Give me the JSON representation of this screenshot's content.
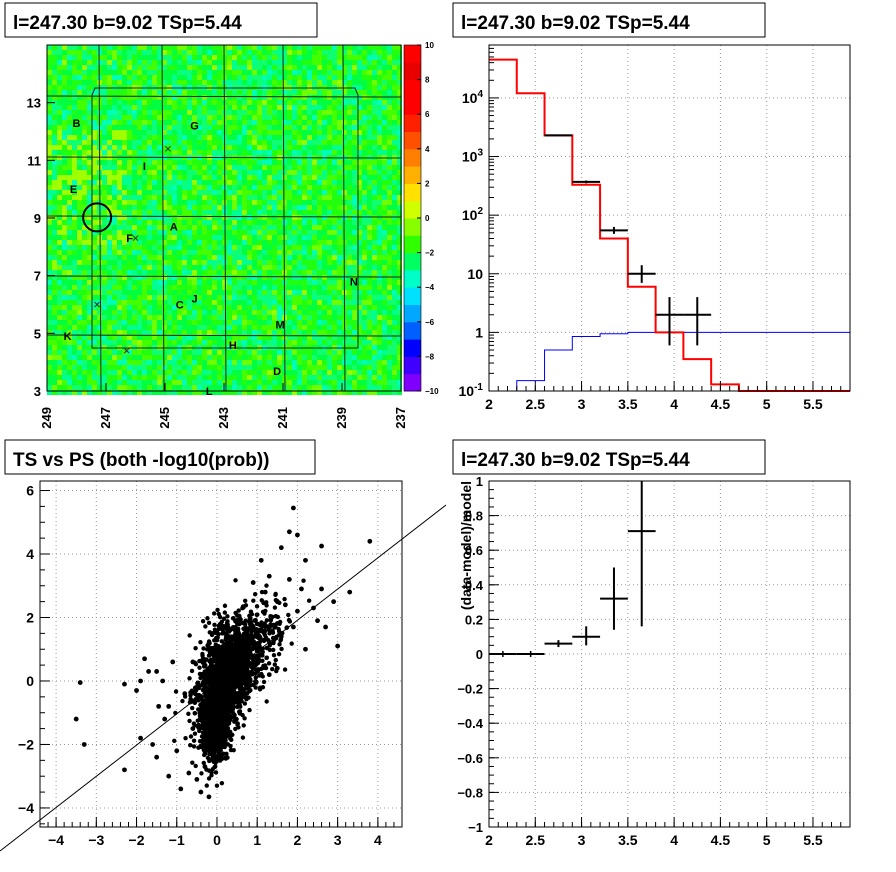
{
  "chart_data": [
    {
      "type": "heatmap",
      "title": "l=247.30 b=9.02 TSp=5.44",
      "x_ticks": [
        "249",
        "247",
        "245",
        "243",
        "241",
        "239",
        "237"
      ],
      "y_ticks": [
        "3",
        "5",
        "7",
        "9",
        "11",
        "13"
      ],
      "xlim": [
        249,
        237
      ],
      "ylim": [
        3,
        15
      ],
      "colorbar": {
        "ticks": [
          "10",
          "8",
          "6",
          "4",
          "2",
          "0",
          "−2",
          "−4",
          "−6",
          "−8",
          "−10"
        ],
        "range": [
          -10,
          10
        ],
        "colors": [
          "#7f00ff",
          "#3f00ff",
          "#0000ff",
          "#0060ff",
          "#00a8ff",
          "#00e0ff",
          "#00ffc8",
          "#00ff60",
          "#30ff00",
          "#88ff00",
          "#d0ff00",
          "#ffe000",
          "#ffb000",
          "#ff8000",
          "#ff5000",
          "#ff2000",
          "#ff0000",
          "#ff0000",
          "#e80000",
          "#ff0000"
        ]
      },
      "sources": [
        {
          "label": "A",
          "l": 244.7,
          "b": 8.7
        },
        {
          "label": "B",
          "l": 248.0,
          "b": 12.3
        },
        {
          "label": "C",
          "l": 244.5,
          "b": 6.0
        },
        {
          "label": "D",
          "l": 241.2,
          "b": 3.7
        },
        {
          "label": "E",
          "l": 248.1,
          "b": 10.0
        },
        {
          "label": "F",
          "l": 246.2,
          "b": 8.3
        },
        {
          "label": "G",
          "l": 244.0,
          "b": 12.2
        },
        {
          "label": "H",
          "l": 242.7,
          "b": 4.6
        },
        {
          "label": "I",
          "l": 245.7,
          "b": 10.8
        },
        {
          "label": "J",
          "l": 244.0,
          "b": 6.2
        },
        {
          "label": "K",
          "l": 248.3,
          "b": 4.9
        },
        {
          "label": "L",
          "l": 243.5,
          "b": 3.0
        },
        {
          "label": "M",
          "l": 241.1,
          "b": 5.3
        },
        {
          "label": "N",
          "l": 238.6,
          "b": 6.8
        }
      ],
      "candidate": {
        "l": 247.3,
        "b": 9.02
      }
    },
    {
      "type": "line",
      "title": "l=247.30 b=9.02 TSp=5.44",
      "x_ticks": [
        "2",
        "2.5",
        "3",
        "3.5",
        "4",
        "4.5",
        "5",
        "5.5"
      ],
      "y_ticks": [
        "10^{-1}",
        "1",
        "10",
        "10^{2}",
        "10^{3}",
        "10^{4}"
      ],
      "y_scale": "log",
      "xlim": [
        2.0,
        5.9
      ],
      "ylim": [
        0.1,
        80000
      ],
      "grid": true,
      "model_total": [
        {
          "x0": 2.0,
          "x1": 2.3,
          "y": 45000
        },
        {
          "x0": 2.3,
          "x1": 2.6,
          "y": 12000
        },
        {
          "x0": 2.6,
          "x1": 2.9,
          "y": 2300
        },
        {
          "x0": 2.9,
          "x1": 3.2,
          "y": 330
        },
        {
          "x0": 3.2,
          "x1": 3.5,
          "y": 40
        },
        {
          "x0": 3.5,
          "x1": 3.8,
          "y": 6
        },
        {
          "x0": 3.8,
          "x1": 4.1,
          "y": 1.0
        },
        {
          "x0": 4.1,
          "x1": 4.4,
          "y": 0.35
        },
        {
          "x0": 4.4,
          "x1": 4.7,
          "y": 0.13
        },
        {
          "x0": 4.7,
          "x1": 5.9,
          "y": 0.1
        }
      ],
      "model_source": [
        {
          "x0": 2.3,
          "x1": 2.6,
          "y": 0.15
        },
        {
          "x0": 2.6,
          "x1": 2.9,
          "y": 0.5
        },
        {
          "x0": 2.9,
          "x1": 3.2,
          "y": 0.85
        },
        {
          "x0": 3.2,
          "x1": 3.5,
          "y": 0.95
        },
        {
          "x0": 3.5,
          "x1": 5.9,
          "y": 1.0
        }
      ],
      "data": [
        {
          "x": 2.75,
          "xerr": 0.15,
          "y": 2300,
          "ylo": 2300,
          "yhi": 2300
        },
        {
          "x": 3.05,
          "xerr": 0.15,
          "y": 370,
          "ylo": 350,
          "yhi": 390
        },
        {
          "x": 3.35,
          "xerr": 0.15,
          "y": 55,
          "ylo": 48,
          "yhi": 63
        },
        {
          "x": 3.65,
          "xerr": 0.15,
          "y": 10,
          "ylo": 7,
          "yhi": 14
        },
        {
          "x": 3.95,
          "xerr": 0.15,
          "y": 2,
          "ylo": 0.6,
          "yhi": 4
        },
        {
          "x": 4.25,
          "xerr": 0.15,
          "y": 2,
          "ylo": 0.6,
          "yhi": 4
        }
      ]
    },
    {
      "type": "scatter",
      "title": "TS vs PS (both -log10(prob))",
      "x_ticks": [
        "−4",
        "−3",
        "−2",
        "−1",
        "0",
        "1",
        "2",
        "3",
        "4"
      ],
      "y_ticks": [
        "−4",
        "−2",
        "0",
        "2",
        "4",
        "6"
      ],
      "xlim": [
        -4.4,
        4.6
      ],
      "ylim": [
        -4.6,
        6.3
      ],
      "grid": true,
      "core_cloud": [
        {
          "cx": 0.1,
          "cy": -0.2,
          "sx": 0.3,
          "sy": 0.9
        },
        {
          "cx": 0.5,
          "cy": 0.5,
          "sx": 0.5,
          "sy": 0.7
        },
        {
          "cx": 0.0,
          "cy": -1.2,
          "sx": 0.15,
          "sy": 0.6
        }
      ],
      "outliers": [
        {
          "x": -3.5,
          "y": -1.2
        },
        {
          "x": -3.3,
          "y": -2.0
        },
        {
          "x": -3.4,
          "y": -0.05
        },
        {
          "x": -2.3,
          "y": -0.1
        },
        {
          "x": -2.3,
          "y": -2.8
        },
        {
          "x": -1.9,
          "y": -1.8
        },
        {
          "x": -1.8,
          "y": 0.7
        },
        {
          "x": -1.6,
          "y": -2.0
        },
        {
          "x": -1.5,
          "y": -2.4
        },
        {
          "x": -1.7,
          "y": 0.3
        },
        {
          "x": -1.45,
          "y": -0.8
        },
        {
          "x": -1.3,
          "y": -1.2
        },
        {
          "x": -1.35,
          "y": 0.0
        },
        {
          "x": -1.2,
          "y": -3.0
        },
        {
          "x": -1.1,
          "y": 0.6
        },
        {
          "x": -1.9,
          "y": 0.0
        },
        {
          "x": -2.0,
          "y": -0.3
        },
        {
          "x": -1.5,
          "y": 0.3
        },
        {
          "x": -0.9,
          "y": -3.4
        },
        {
          "x": -0.7,
          "y": -2.9
        },
        {
          "x": -1.0,
          "y": -2.2
        },
        {
          "x": -0.8,
          "y": -0.4
        },
        {
          "x": -0.6,
          "y": 0.6
        },
        {
          "x": -0.5,
          "y": -3.1
        },
        {
          "x": -0.4,
          "y": -3.5
        },
        {
          "x": -0.2,
          "y": -3.65
        },
        {
          "x": -0.3,
          "y": -2.7
        },
        {
          "x": -0.6,
          "y": -1.5
        },
        {
          "x": -1.2,
          "y": -0.8
        },
        {
          "x": 1.9,
          "y": 5.45
        },
        {
          "x": 3.8,
          "y": 4.4
        },
        {
          "x": 2.6,
          "y": 4.25
        },
        {
          "x": 1.8,
          "y": 4.7
        },
        {
          "x": 2.0,
          "y": 4.6
        },
        {
          "x": 1.6,
          "y": 4.2
        },
        {
          "x": 2.2,
          "y": 3.8
        },
        {
          "x": 3.3,
          "y": 2.8
        },
        {
          "x": 2.6,
          "y": 2.9
        },
        {
          "x": 3.0,
          "y": 1.1
        },
        {
          "x": 2.7,
          "y": 1.7
        },
        {
          "x": 2.4,
          "y": 2.3
        },
        {
          "x": 2.9,
          "y": 2.5
        },
        {
          "x": 1.8,
          "y": 3.2
        },
        {
          "x": 1.1,
          "y": 3.8
        },
        {
          "x": 1.3,
          "y": 3.3
        },
        {
          "x": 2.0,
          "y": 2.2
        },
        {
          "x": 1.6,
          "y": 1.4
        },
        {
          "x": 2.2,
          "y": 1.0
        },
        {
          "x": 1.5,
          "y": 0.4
        },
        {
          "x": 1.9,
          "y": 1.7
        },
        {
          "x": 1.2,
          "y": 2.8
        },
        {
          "x": 2.1,
          "y": 2.9
        },
        {
          "x": 0.9,
          "y": 3.1
        },
        {
          "x": 1.5,
          "y": 2.5
        },
        {
          "x": 2.5,
          "y": 1.9
        },
        {
          "x": 1.7,
          "y": 2.4
        },
        {
          "x": 1.4,
          "y": 1.2
        },
        {
          "x": 1.0,
          "y": 1.8
        },
        {
          "x": 1.3,
          "y": 0.2
        }
      ],
      "reference_line": {
        "slope": 1,
        "intercept": 0
      }
    },
    {
      "type": "scatter",
      "title": "l=247.30 b=9.02 TSp=5.44",
      "ylabel": "(data-model)/model",
      "x_ticks": [
        "2",
        "2.5",
        "3",
        "3.5",
        "4",
        "4.5",
        "5",
        "5.5"
      ],
      "y_ticks": [
        "−1",
        "−0.8",
        "−0.6",
        "−0.4",
        "−0.2",
        "0",
        "0.2",
        "0.4",
        "0.6",
        "0.8",
        "1"
      ],
      "xlim": [
        2.0,
        5.9
      ],
      "ylim": [
        -1,
        1
      ],
      "grid": true,
      "points": [
        {
          "x": 2.15,
          "xerr": 0.15,
          "y": 0.0,
          "ylo": 0.0,
          "yhi": 0.0
        },
        {
          "x": 2.45,
          "xerr": 0.15,
          "y": 0.0,
          "ylo": -0.005,
          "yhi": 0.005
        },
        {
          "x": 2.75,
          "xerr": 0.15,
          "y": 0.06,
          "ylo": 0.04,
          "yhi": 0.08
        },
        {
          "x": 3.05,
          "xerr": 0.15,
          "y": 0.1,
          "ylo": 0.05,
          "yhi": 0.16
        },
        {
          "x": 3.35,
          "xerr": 0.15,
          "y": 0.32,
          "ylo": 0.14,
          "yhi": 0.5
        },
        {
          "x": 3.65,
          "xerr": 0.15,
          "y": 0.71,
          "ylo": 0.16,
          "yhi": 1.0
        }
      ]
    }
  ]
}
